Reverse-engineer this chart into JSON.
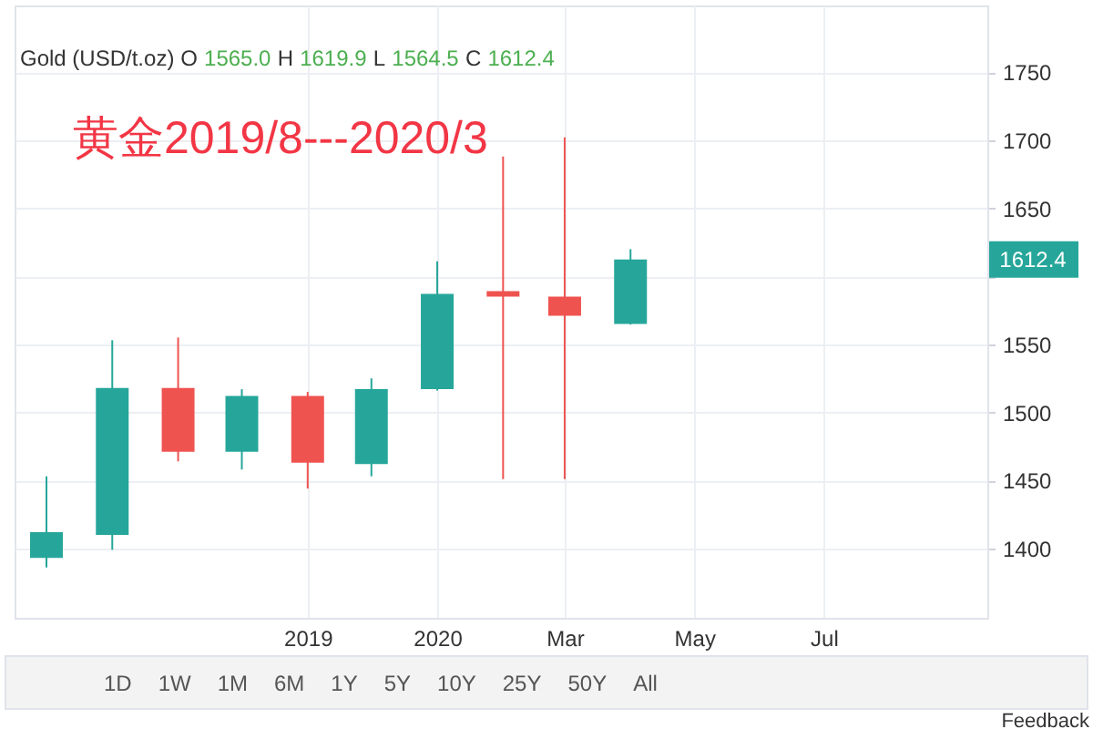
{
  "chart_data": {
    "type": "candlestick",
    "title": "Gold (USD/t.oz)",
    "subtitle": "黄金2019/8---2020/3",
    "x": [
      "2019-07",
      "2019-08",
      "2019-09",
      "2019-10",
      "2019-11",
      "2019-12",
      "2020-01",
      "2020-02",
      "2020-03",
      "2020-04"
    ],
    "ohlc": [
      [
        1393,
        1453,
        1386,
        1412
      ],
      [
        1410,
        1553,
        1399,
        1518
      ],
      [
        1518,
        1555,
        1464,
        1471
      ],
      [
        1471,
        1517,
        1458,
        1512
      ],
      [
        1512,
        1515,
        1444,
        1463
      ],
      [
        1462,
        1525,
        1453,
        1517
      ],
      [
        1517,
        1611,
        1516,
        1587
      ],
      [
        1589,
        1688,
        1451,
        1585
      ],
      [
        1585,
        1702,
        1451,
        1571
      ],
      [
        1565.0,
        1619.9,
        1564.5,
        1612.4
      ]
    ],
    "colors": [
      "#26a69a",
      "#26a69a",
      "#ef5350",
      "#26a69a",
      "#ef5350",
      "#26a69a",
      "#26a69a",
      "#ef5350",
      "#ef5350",
      "#26a69a"
    ],
    "xlim": [
      "2019-06-16",
      "2020-09-16"
    ],
    "xticks": [
      {
        "value": "2019-11",
        "label": "2019"
      },
      {
        "value": "2020-01",
        "label": "2020"
      },
      {
        "value": "2020-03",
        "label": "Mar"
      },
      {
        "value": "2020-05",
        "label": "May"
      },
      {
        "value": "2020-07",
        "label": "Jul"
      }
    ],
    "ylim": [
      1349,
      1799
    ],
    "yticks": [
      1400,
      1450,
      1500,
      1550,
      {
        "value": 1600,
        "label": null
      },
      1650,
      1700,
      1750
    ],
    "grid": true,
    "annotations": [
      "O",
      "1565.0",
      "H",
      "1619.9",
      "L",
      "1564.5",
      "C",
      "1612.4",
      "1612.4",
      "1D",
      "1W",
      "1M",
      "6M",
      "1Y",
      "5Y",
      "10Y",
      "25Y",
      "50Y",
      "All",
      "Feedback"
    ]
  }
}
